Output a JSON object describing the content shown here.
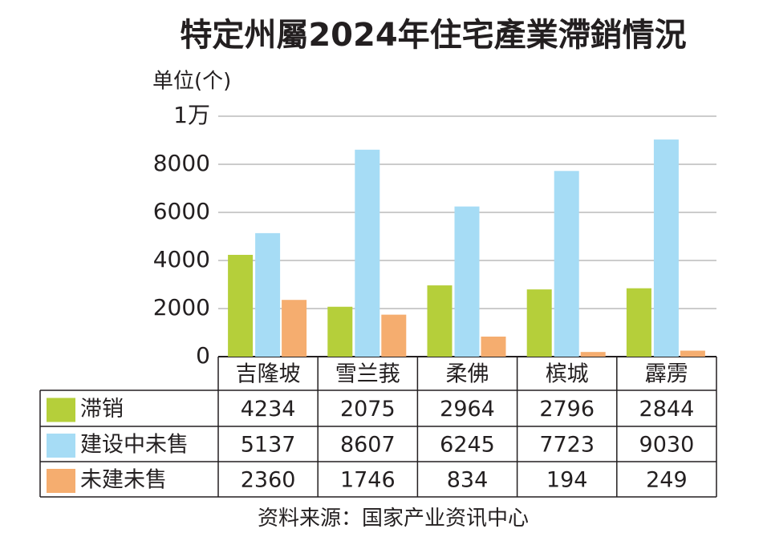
{
  "chart_data": {
    "type": "bar",
    "title": "特定州屬2024年住宅產業滯銷情況",
    "y_label": "单位(个)",
    "source": "资料来源：国家产业资讯中心",
    "categories": [
      "吉隆坡",
      "雪兰莪",
      "柔佛",
      "槟城",
      "霹雳"
    ],
    "series": [
      {
        "name": "滞销",
        "color": "#b5cf3a",
        "values": [
          4234,
          2075,
          2964,
          2796,
          2844
        ]
      },
      {
        "name": "建设中未售",
        "color": "#a6dcf5",
        "values": [
          5137,
          8607,
          6245,
          7723,
          9030
        ]
      },
      {
        "name": "未建未售",
        "color": "#f5ad6f",
        "values": [
          2360,
          1746,
          834,
          194,
          249
        ]
      }
    ],
    "ylim": [
      0,
      10000
    ],
    "yticks": [
      0,
      2000,
      4000,
      6000,
      8000,
      {
        "value": 10000,
        "label": "1万"
      }
    ],
    "grid": true
  }
}
